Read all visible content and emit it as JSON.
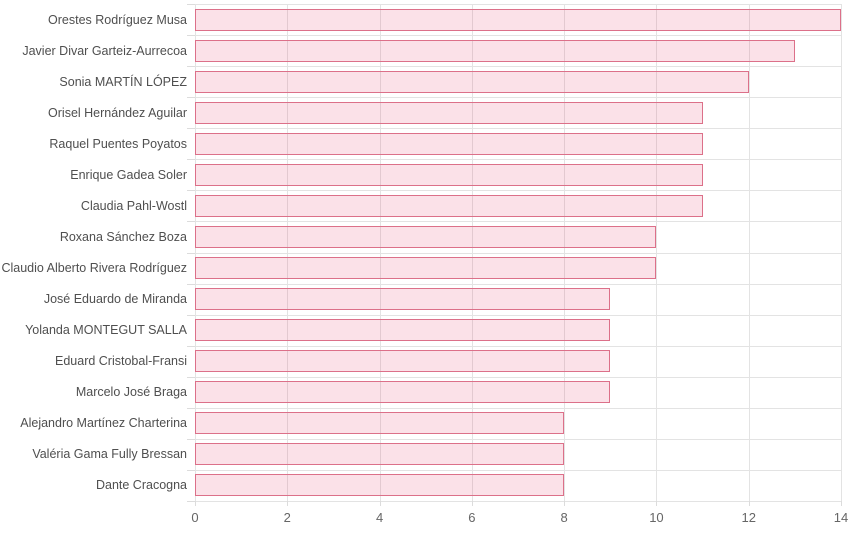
{
  "chart_data": {
    "type": "bar",
    "orientation": "horizontal",
    "title": "",
    "xlabel": "",
    "ylabel": "",
    "categories": [
      "Orestes Rodríguez Musa",
      "Javier Divar Garteiz-Aurrecoa",
      "Sonia MARTÍN LÓPEZ",
      "Orisel Hernández Aguilar",
      "Raquel Puentes Poyatos",
      "Enrique Gadea Soler",
      "Claudia Pahl-Wostl",
      "Roxana Sánchez Boza",
      "Claudio Alberto Rivera Rodríguez",
      "José Eduardo de Miranda",
      "Yolanda MONTEGUT SALLA",
      "Eduard Cristobal-Fransi",
      "Marcelo José Braga",
      "Alejandro Martínez Charterina",
      "Valéria Gama Fully Bressan",
      "Dante Cracogna"
    ],
    "values": [
      14,
      13,
      12,
      11,
      11,
      11,
      11,
      10,
      10,
      9,
      9,
      9,
      9,
      8,
      8,
      8
    ],
    "xlim": [
      0,
      14
    ],
    "xticks": [
      0,
      2,
      4,
      6,
      8,
      10,
      12,
      14
    ],
    "grid": true,
    "legend": false,
    "colors": {
      "bar_fill": "rgba(229, 70, 112, 0.16)",
      "bar_border": "#dc7089",
      "gridline": "#e3e3e3",
      "tick_mark": "#dcdcdc",
      "category_label": "#4f4f4f",
      "axis_tick_label": "#666666",
      "background": "#ffffff"
    }
  }
}
